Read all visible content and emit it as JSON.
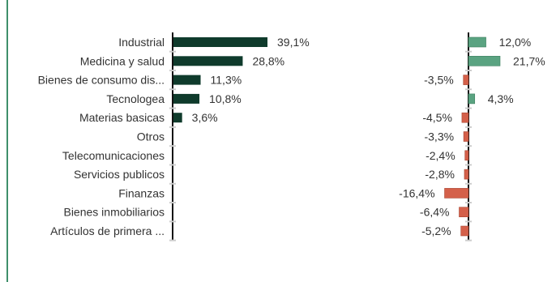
{
  "chart_data": [
    {
      "type": "bar",
      "orientation": "horizontal",
      "categories": [
        "Industrial",
        "Medicina y salud",
        "Bienes de consumo dis...",
        "Tecnologea",
        "Materias basicas",
        "Otros",
        "Telecomunicaciones",
        "Servicios publicos",
        "Finanzas",
        "Bienes inmobiliarios",
        "Artículos de primera ..."
      ],
      "values": [
        39.1,
        28.8,
        11.3,
        10.8,
        3.6,
        null,
        null,
        null,
        null,
        null,
        null
      ],
      "labels": [
        "39,1%",
        "28,8%",
        "11,3%",
        "10,8%",
        "3,6%",
        "",
        "",
        "",
        "",
        "",
        ""
      ],
      "xlim": [
        0,
        40
      ],
      "bar_color": "#0f3b2c"
    },
    {
      "type": "bar",
      "orientation": "horizontal",
      "categories": [
        "Industrial",
        "Medicina y salud",
        "Bienes de consumo dis...",
        "Tecnologea",
        "Materias basicas",
        "Otros",
        "Telecomunicaciones",
        "Servicios publicos",
        "Finanzas",
        "Bienes inmobiliarios",
        "Artículos de primera ..."
      ],
      "values": [
        12.0,
        21.7,
        -3.5,
        4.3,
        -4.5,
        -3.3,
        -2.4,
        -2.8,
        -16.4,
        -6.4,
        -5.2
      ],
      "labels": [
        "12,0%",
        "21,7%",
        "-3,5%",
        "4,3%",
        "-4,5%",
        "-3,3%",
        "-2,4%",
        "-2,8%",
        "-16,4%",
        "-6,4%",
        "-5,2%"
      ],
      "xlim": [
        -17,
        22
      ],
      "positive_color": "#5aa381",
      "negative_color": "#d4604a"
    }
  ]
}
